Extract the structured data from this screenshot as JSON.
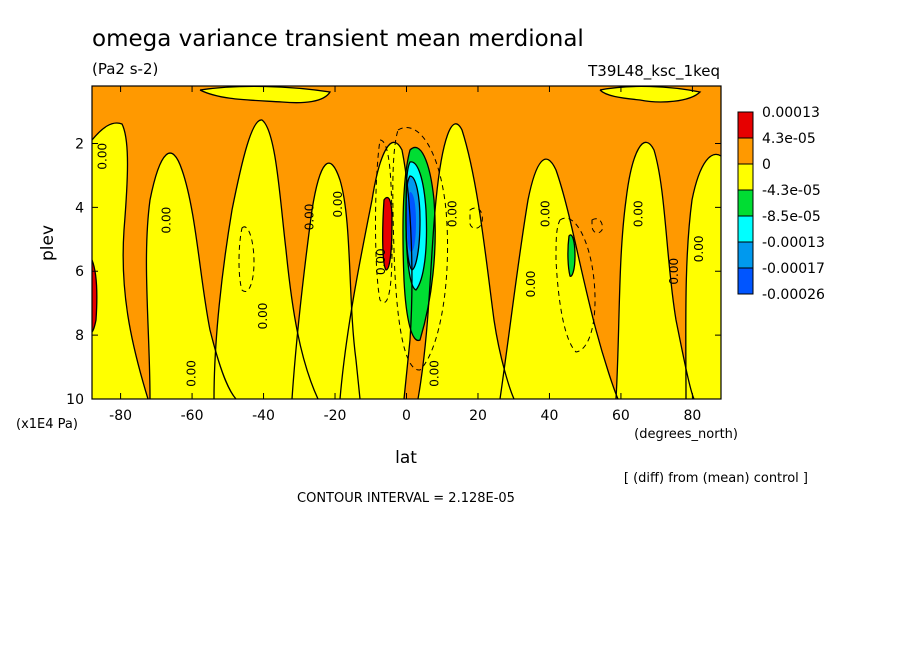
{
  "title": "omega variance transient mean merdional",
  "units": "(Pa2 s-2)",
  "run_id": "T39L48_ksc_1keq",
  "x_label": "lat",
  "x_units": "(degrees_north)",
  "y_label": "plev",
  "y_units": "(x1E4 Pa)",
  "diff_note": "[ (diff) from (mean) control ]",
  "contour_interval": "CONTOUR INTERVAL = 2.128E-05",
  "contour_label": "0.00",
  "colors": {
    "c1": "#e60000",
    "c2": "#ff9900",
    "c3": "#ffff00",
    "c4": "#00dd33",
    "c5": "#00ffff",
    "c6": "#0099ee",
    "c7": "#0055ff"
  },
  "chart_data": {
    "type": "heatmap",
    "title": "omega variance transient mean merdional",
    "subtitle": "(Pa2 s-2)",
    "xlabel": "lat",
    "ylabel": "plev",
    "xlim": [
      -88,
      88
    ],
    "ylim": [
      10,
      0.2
    ],
    "x_ticks": [
      -80,
      -60,
      -40,
      -20,
      0,
      20,
      40,
      60,
      80
    ],
    "y_ticks": [
      2,
      4,
      6,
      8,
      10
    ],
    "legend": {
      "position": "right",
      "labels": [
        "0.00013",
        "4.3e-05",
        "0",
        "-4.3e-05",
        "-8.5e-05",
        "-0.00013",
        "-0.00017",
        "-0.00026"
      ],
      "colors": [
        "#e60000",
        "#ff9900",
        "#ffff00",
        "#00dd33",
        "#00ffff",
        "#0099ee",
        "#0055ff"
      ]
    },
    "contour_interval": 2.128e-05
  }
}
